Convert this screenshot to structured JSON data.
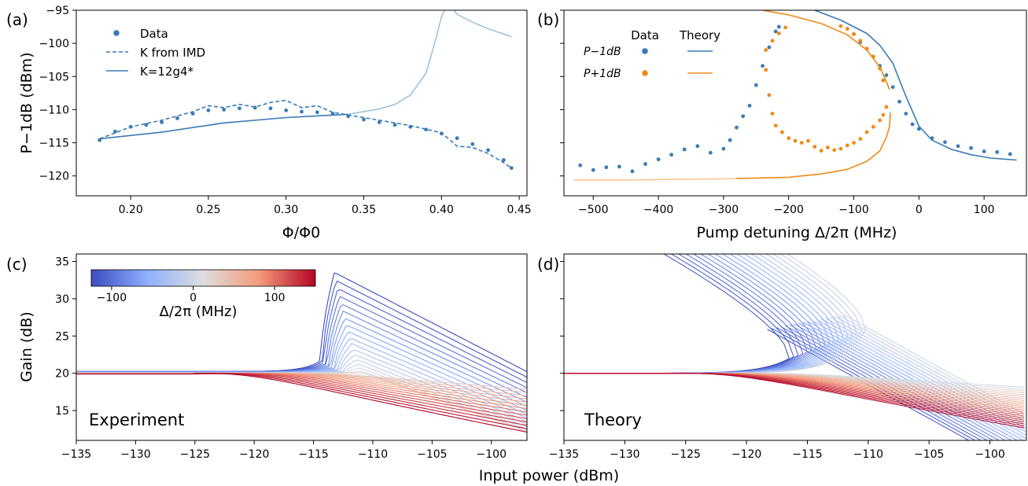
{
  "figure": {
    "shared_xlabel": "Input power (dBm)"
  },
  "chart_data": [
    {
      "panel": "(a)",
      "type": "scatter",
      "xlabel": "Φ/Φ0",
      "ylabel": "P−1dB (dBm)",
      "xlim": [
        0.165,
        0.455
      ],
      "ylim": [
        -123,
        -95
      ],
      "xticks": [
        0.2,
        0.25,
        0.3,
        0.35,
        0.4,
        0.45
      ],
      "xtick_labels": [
        "0.20",
        "0.25",
        "0.30",
        "0.35",
        "0.40",
        "0.45"
      ],
      "yticks": [
        -120,
        -115,
        -110,
        -105,
        -100,
        -95
      ],
      "ytick_labels": [
        "−120",
        "−115",
        "−110",
        "−105",
        "−100",
        "−95"
      ],
      "legend_position": "top-left",
      "legend": [
        {
          "label": "Data",
          "style": "marker"
        },
        {
          "label": "K from IMD",
          "style": "dashed"
        },
        {
          "label": "K=12g4*",
          "style": "solid"
        }
      ],
      "series": [
        {
          "name": "Data",
          "kind": "scatter",
          "color": "#3a7bb5",
          "x": [
            0.18,
            0.19,
            0.2,
            0.21,
            0.22,
            0.23,
            0.24,
            0.25,
            0.26,
            0.27,
            0.28,
            0.29,
            0.3,
            0.31,
            0.32,
            0.33,
            0.34,
            0.35,
            0.36,
            0.37,
            0.38,
            0.39,
            0.4,
            0.41,
            0.42,
            0.43,
            0.44,
            0.445
          ],
          "y": [
            -114.6,
            -113.3,
            -112.6,
            -112.3,
            -111.9,
            -111.3,
            -110.6,
            -110.1,
            -110.0,
            -109.8,
            -109.7,
            -109.8,
            -110.1,
            -110.3,
            -110.4,
            -110.6,
            -111.0,
            -111.5,
            -111.9,
            -112.3,
            -112.6,
            -113.0,
            -113.6,
            -114.3,
            -115.2,
            -116.1,
            -117.6,
            -118.8
          ]
        },
        {
          "name": "K from IMD",
          "kind": "line",
          "dash": "dashed",
          "color": "#3a7bb5",
          "x": [
            0.18,
            0.2,
            0.22,
            0.24,
            0.25,
            0.26,
            0.27,
            0.28,
            0.29,
            0.3,
            0.31,
            0.32,
            0.33,
            0.34,
            0.36,
            0.38,
            0.4,
            0.41,
            0.42,
            0.43,
            0.44,
            0.445
          ],
          "y": [
            -114.4,
            -112.6,
            -111.6,
            -110.3,
            -109.4,
            -109.7,
            -109.2,
            -109.6,
            -108.9,
            -108.6,
            -109.7,
            -109.4,
            -110.4,
            -110.8,
            -111.6,
            -112.4,
            -113.5,
            -115.5,
            -115.7,
            -116.6,
            -118.0,
            -118.8
          ]
        },
        {
          "name": "K=12g4* (dark)",
          "kind": "line",
          "color": "#3a7bb5",
          "x": [
            0.18,
            0.22,
            0.26,
            0.3,
            0.34
          ],
          "y": [
            -114.4,
            -113.4,
            -112.0,
            -111.2,
            -110.7
          ]
        },
        {
          "name": "K=12g4* (light)",
          "kind": "line",
          "color": "#9fc3df",
          "x": [
            0.34,
            0.36,
            0.37,
            0.38,
            0.39,
            0.395,
            0.4,
            0.402
          ],
          "y": [
            -110.7,
            -109.9,
            -109.2,
            -107.8,
            -104.5,
            -100.5,
            -96.0,
            -95.0
          ]
        },
        {
          "name": "K=12g4* (light, right branch)",
          "kind": "line",
          "color": "#9fc3df",
          "x": [
            0.408,
            0.41,
            0.42,
            0.43,
            0.44,
            0.445
          ],
          "y": [
            -95.0,
            -95.6,
            -96.8,
            -97.8,
            -98.6,
            -99.0
          ]
        }
      ]
    },
    {
      "panel": "(b)",
      "type": "scatter",
      "xlabel": "Pump detuning Δ/2π (MHz)",
      "xlim": [
        -545,
        165
      ],
      "ylim": [
        -123,
        -95
      ],
      "xticks": [
        -500,
        -400,
        -300,
        -200,
        -100,
        0,
        100
      ],
      "xtick_labels": [
        "−500",
        "−400",
        "−300",
        "−200",
        "−100",
        "0",
        "100"
      ],
      "legend_position": "top-left",
      "legend_headers": [
        "Data",
        "Theory"
      ],
      "legend_rows": [
        {
          "label": "P−1dB",
          "color": "#3a7bb5"
        },
        {
          "label": "P+1dB",
          "color": "#ef8a17"
        }
      ],
      "series": [
        {
          "name": "P−1dB data",
          "kind": "scatter",
          "color": "#3a7bb5",
          "x": [
            -520,
            -500,
            -480,
            -460,
            -440,
            -420,
            -400,
            -380,
            -360,
            -340,
            -320,
            -300,
            -290,
            -280,
            -270,
            -260,
            -250,
            -240,
            -230,
            -220,
            -215,
            -110,
            -100,
            -90,
            -80,
            -70,
            -60,
            -50,
            -40,
            -30,
            -20,
            -10,
            0,
            20,
            40,
            60,
            80,
            100,
            120,
            140
          ],
          "y": [
            -118.4,
            -119.1,
            -118.7,
            -118.6,
            -119.3,
            -118.2,
            -117.5,
            -116.8,
            -116.0,
            -115.5,
            -116.5,
            -115.9,
            -114.6,
            -112.7,
            -111.0,
            -109.4,
            -106.3,
            -103.4,
            -100.6,
            -98.2,
            -97.5,
            -97.8,
            -98.6,
            -99.8,
            -100.8,
            -102.0,
            -103.4,
            -104.8,
            -106.6,
            -108.8,
            -110.6,
            -112.2,
            -112.9,
            -114.3,
            -114.9,
            -115.5,
            -115.8,
            -116.3,
            -116.4,
            -116.7
          ]
        },
        {
          "name": "P+1dB data",
          "kind": "scatter",
          "color": "#ef8a17",
          "x": [
            -235,
            -230,
            -225,
            -220,
            -210,
            -200,
            -190,
            -180,
            -170,
            -160,
            -150,
            -140,
            -130,
            -120,
            -110,
            -100,
            -90,
            -80,
            -70,
            -60,
            -55,
            -50
          ],
          "y": [
            -104.0,
            -107.8,
            -110.6,
            -112.4,
            -113.4,
            -114.3,
            -114.7,
            -115.0,
            -114.7,
            -115.6,
            -116.2,
            -115.7,
            -116.1,
            -115.9,
            -115.4,
            -115.0,
            -114.4,
            -113.4,
            -112.6,
            -111.6,
            -110.8,
            -109.6
          ]
        },
        {
          "name": "P+1dB data (upper arc)",
          "kind": "scatter",
          "color": "#ef8a17",
          "x": [
            -235,
            -225,
            -215,
            -205,
            -120,
            -110,
            -100,
            -90,
            -80,
            -70,
            -60,
            -55
          ],
          "y": [
            -101.0,
            -99.6,
            -98.5,
            -97.6,
            -97.4,
            -97.8,
            -98.6,
            -99.6,
            -100.8,
            -102.0,
            -103.8,
            -105.6
          ]
        },
        {
          "name": "P−1dB theory",
          "kind": "line",
          "color": "#3a7bb5",
          "x": [
            -160,
            -120,
            -80,
            -60,
            -40,
            -20,
            0,
            20,
            50,
            80,
            110,
            150
          ],
          "y": [
            -95.0,
            -96.5,
            -98.5,
            -100.3,
            -103.0,
            -108.0,
            -112.5,
            -114.6,
            -116.0,
            -116.8,
            -117.3,
            -117.6
          ]
        },
        {
          "name": "P+1dB theory (upper)",
          "kind": "line",
          "color": "#ef8a17",
          "x": [
            -240,
            -200,
            -150,
            -110,
            -80,
            -60,
            -50,
            -45
          ],
          "y": [
            -95.0,
            -95.7,
            -97.0,
            -98.7,
            -101.0,
            -103.6,
            -105.8,
            -107.0
          ]
        },
        {
          "name": "P+1dB theory (lower, light)",
          "kind": "line",
          "color": "#ffc58f",
          "x": [
            -530,
            -450,
            -350,
            -280
          ],
          "y": [
            -120.6,
            -120.6,
            -120.5,
            -120.4
          ]
        },
        {
          "name": "P+1dB theory (lower)",
          "kind": "line",
          "color": "#ef8a17",
          "x": [
            -280,
            -200,
            -150,
            -110,
            -80,
            -60,
            -50,
            -45,
            -44
          ],
          "y": [
            -120.4,
            -120.2,
            -119.7,
            -119.0,
            -117.8,
            -116.2,
            -114.2,
            -112.5,
            -110.4
          ]
        }
      ]
    },
    {
      "panel": "(c)",
      "type": "line",
      "ylabel": "Gain (dB)",
      "annotation": "Experiment",
      "xlim": [
        -135,
        -97
      ],
      "ylim": [
        11,
        36
      ],
      "xticks": [
        -135,
        -130,
        -125,
        -120,
        -115,
        -110,
        -105,
        -100
      ],
      "xtick_labels": [
        "−135",
        "−130",
        "−125",
        "−120",
        "−115",
        "−110",
        "−105",
        "−100"
      ],
      "yticks": [
        15,
        20,
        25,
        30,
        35
      ],
      "ytick_labels": [
        "15",
        "20",
        "25",
        "30",
        "35"
      ],
      "colorbar": {
        "label": "Δ/2π (MHz)",
        "range": [
          -125,
          150
        ],
        "ticks": [
          -100,
          0,
          100
        ],
        "tick_labels": [
          "−100",
          "0",
          "100"
        ],
        "colormap": "coolwarm"
      },
      "curve_family": {
        "detuning_min": -125,
        "detuning_max": 150,
        "count": 32,
        "peak_max_db": 33.5,
        "peak_input_dbm": -113.2,
        "baseline_db": 20.0,
        "min_end_db": 11.5
      }
    },
    {
      "panel": "(d)",
      "type": "line",
      "annotation": "Theory",
      "xlim": [
        -135,
        -97
      ],
      "ylim": [
        11,
        36
      ],
      "xticks": [
        -135,
        -130,
        -125,
        -120,
        -115,
        -110,
        -105,
        -100
      ],
      "xtick_labels": [
        "−135",
        "−130",
        "−125",
        "−120",
        "−115",
        "−110",
        "−105",
        "−100"
      ],
      "curve_family": {
        "detuning_min": -125,
        "detuning_max": 150,
        "count": 40,
        "bend_input_dbm": -116.5,
        "baseline_db": 20.0,
        "min_end_db": 12.0
      }
    }
  ]
}
